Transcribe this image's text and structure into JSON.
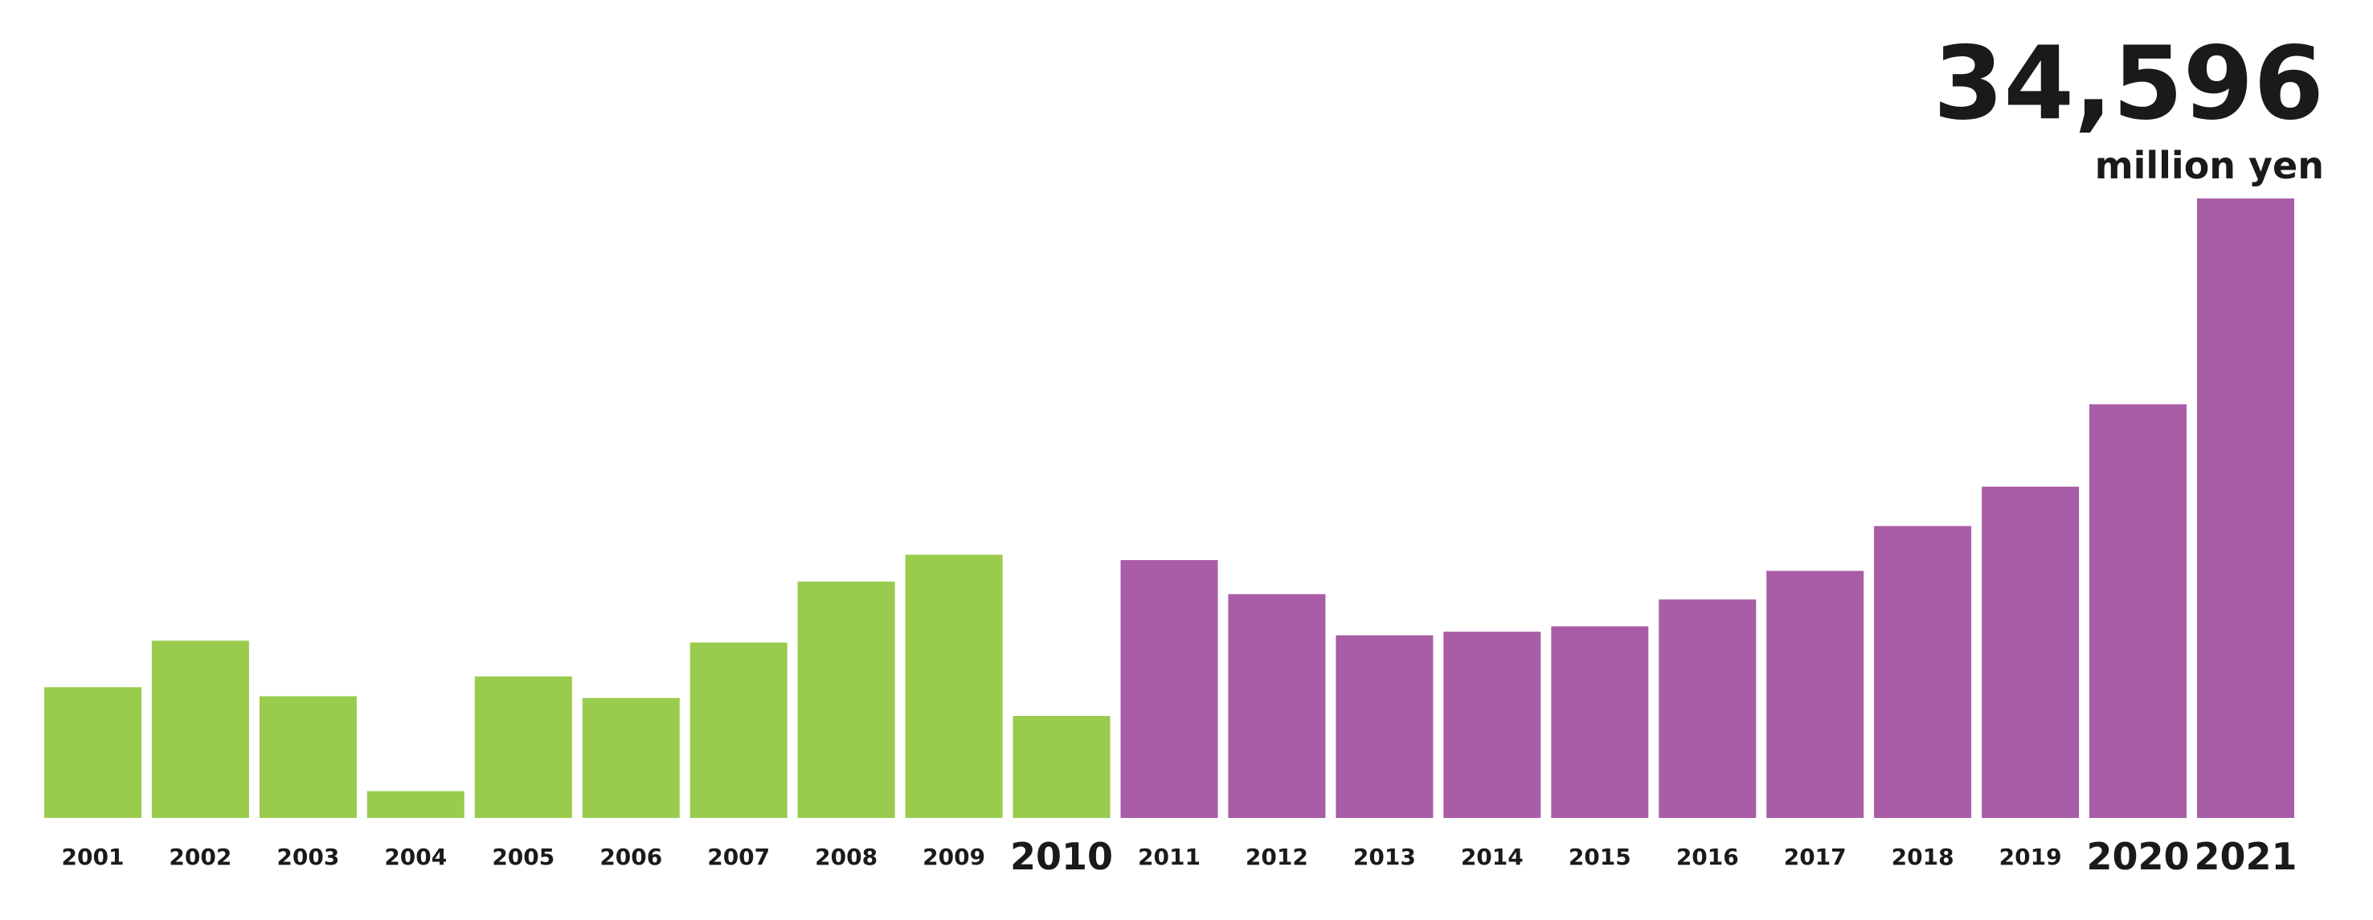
{
  "chart_data": {
    "type": "bar",
    "categories": [
      "2001",
      "2002",
      "2003",
      "2004",
      "2005",
      "2006",
      "2007",
      "2008",
      "2009",
      "2010",
      "2011",
      "2012",
      "2013",
      "2014",
      "2015",
      "2016",
      "2017",
      "2018",
      "2019",
      "2020",
      "2021"
    ],
    "values": [
      7300,
      9900,
      6800,
      1500,
      7900,
      6700,
      9800,
      13200,
      14700,
      5700,
      14400,
      12500,
      10200,
      10400,
      10700,
      12200,
      13800,
      16300,
      18500,
      23100,
      34596
    ],
    "emphasized_categories": [
      "2010",
      "2020",
      "2021"
    ],
    "highlight": {
      "category": "2021",
      "value_label": "34,596",
      "unit_label": "million yen"
    },
    "colors": {
      "period_2001_2010": "#99cc4d",
      "period_2011_2021": "#a85da6",
      "text": "#1a1a1a"
    },
    "series_color_keys": [
      "period_2001_2010",
      "period_2001_2010",
      "period_2001_2010",
      "period_2001_2010",
      "period_2001_2010",
      "period_2001_2010",
      "period_2001_2010",
      "period_2001_2010",
      "period_2001_2010",
      "period_2001_2010",
      "period_2011_2021",
      "period_2011_2021",
      "period_2011_2021",
      "period_2011_2021",
      "period_2011_2021",
      "period_2011_2021",
      "period_2011_2021",
      "period_2011_2021",
      "period_2011_2021",
      "period_2011_2021",
      "period_2011_2021"
    ],
    "title": "",
    "xlabel": "",
    "ylabel": "",
    "ylim": [
      0,
      34596
    ],
    "grid": false,
    "legend": "none"
  }
}
